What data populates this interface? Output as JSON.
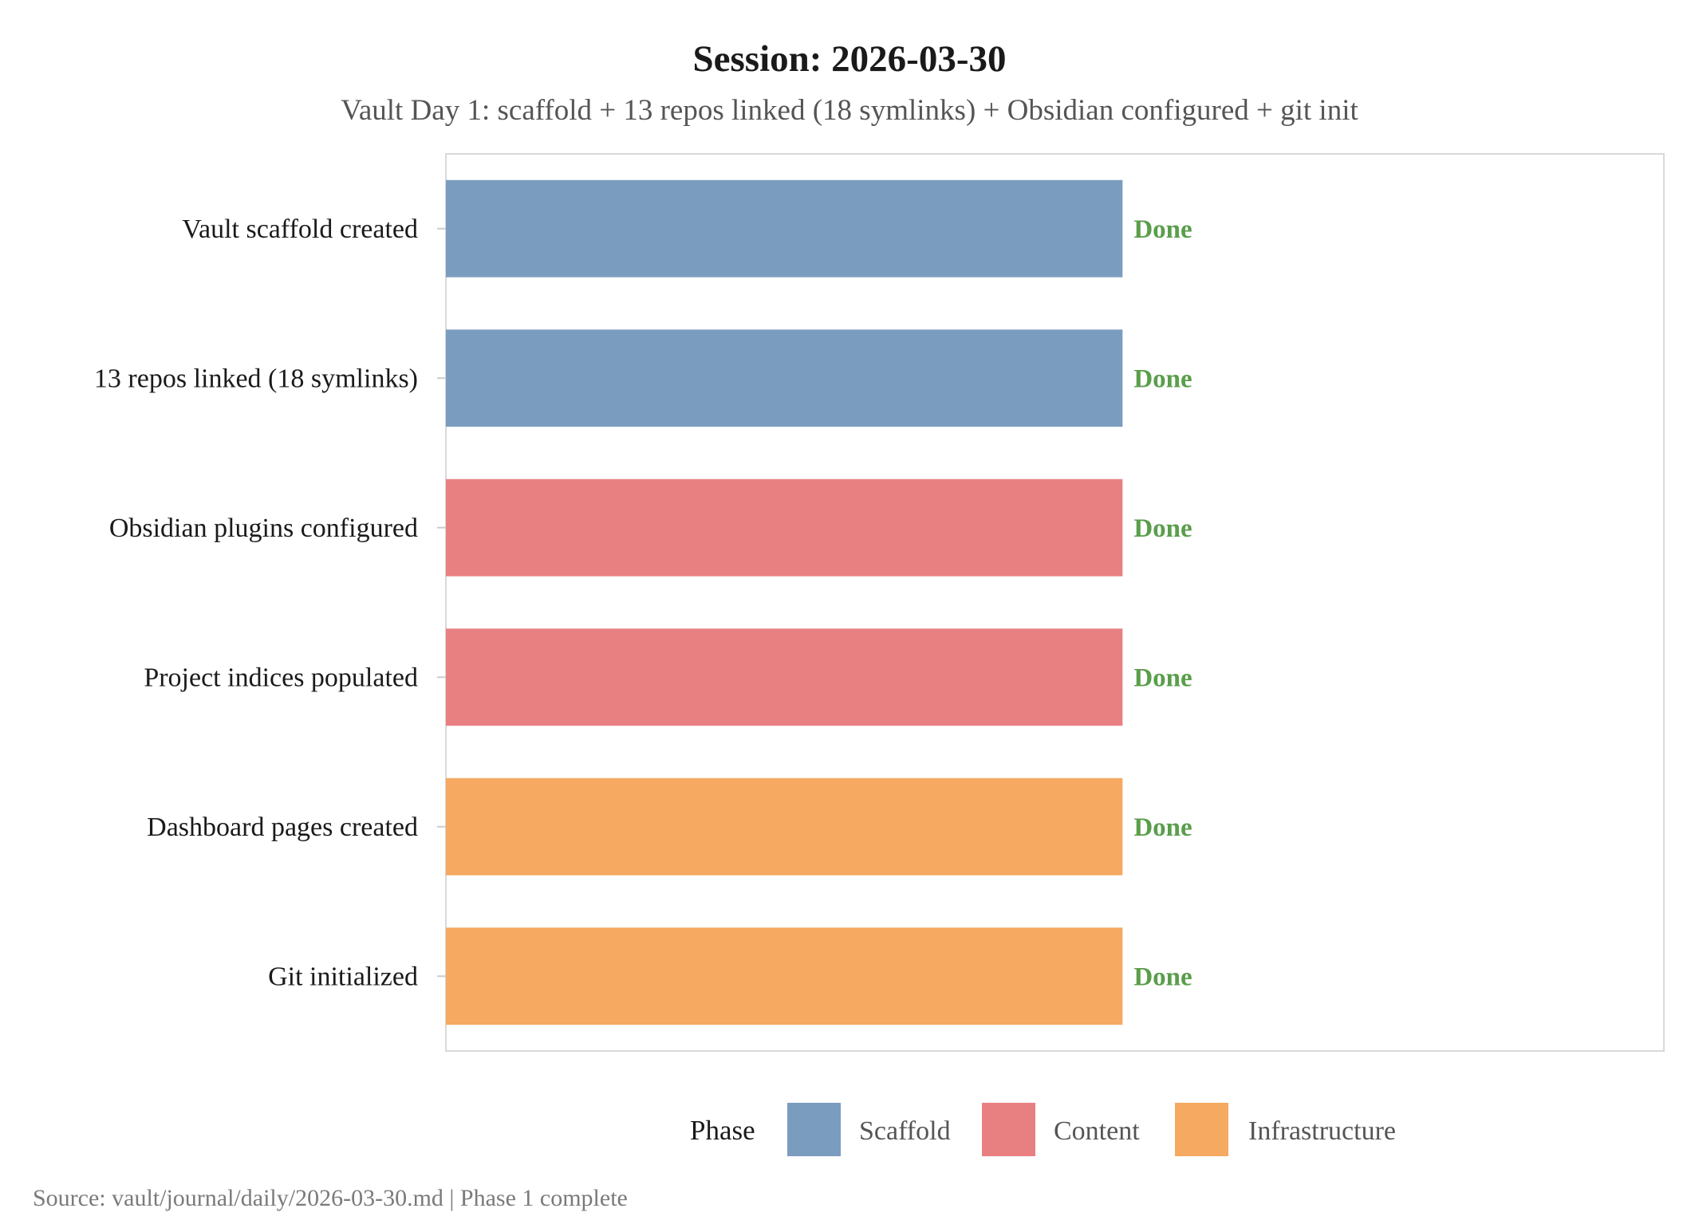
{
  "chart_data": {
    "type": "bar",
    "orientation": "horizontal",
    "title": "Session: 2026-03-30",
    "subtitle": "Vault Day 1: scaffold + 13 repos linked (18 symlinks) + Obsidian configured + git init",
    "caption": "Source: vault/journal/daily/2026-03-30.md | Phase 1 complete",
    "xlabel": "",
    "ylabel": "",
    "xlim": [
      0,
      1.8
    ],
    "grid": false,
    "categories": [
      "Vault scaffold created",
      "13 repos linked (18 symlinks)",
      "Obsidian plugins configured",
      "Project indices populated",
      "Dashboard pages created",
      "Git initialized"
    ],
    "values": [
      1,
      1,
      1,
      1,
      1,
      1
    ],
    "phases": [
      "Scaffold",
      "Scaffold",
      "Content",
      "Content",
      "Infrastructure",
      "Infrastructure"
    ],
    "data_labels": [
      "Done",
      "Done",
      "Done",
      "Done",
      "Done",
      "Done"
    ],
    "data_label_color": "#5a9e4b",
    "legend": {
      "title": "Phase",
      "placement": "bottom",
      "entries": [
        {
          "label": "Scaffold",
          "color": "#7a9cbf"
        },
        {
          "label": "Content",
          "color": "#e88082"
        },
        {
          "label": "Infrastructure",
          "color": "#f5a961"
        }
      ]
    }
  }
}
